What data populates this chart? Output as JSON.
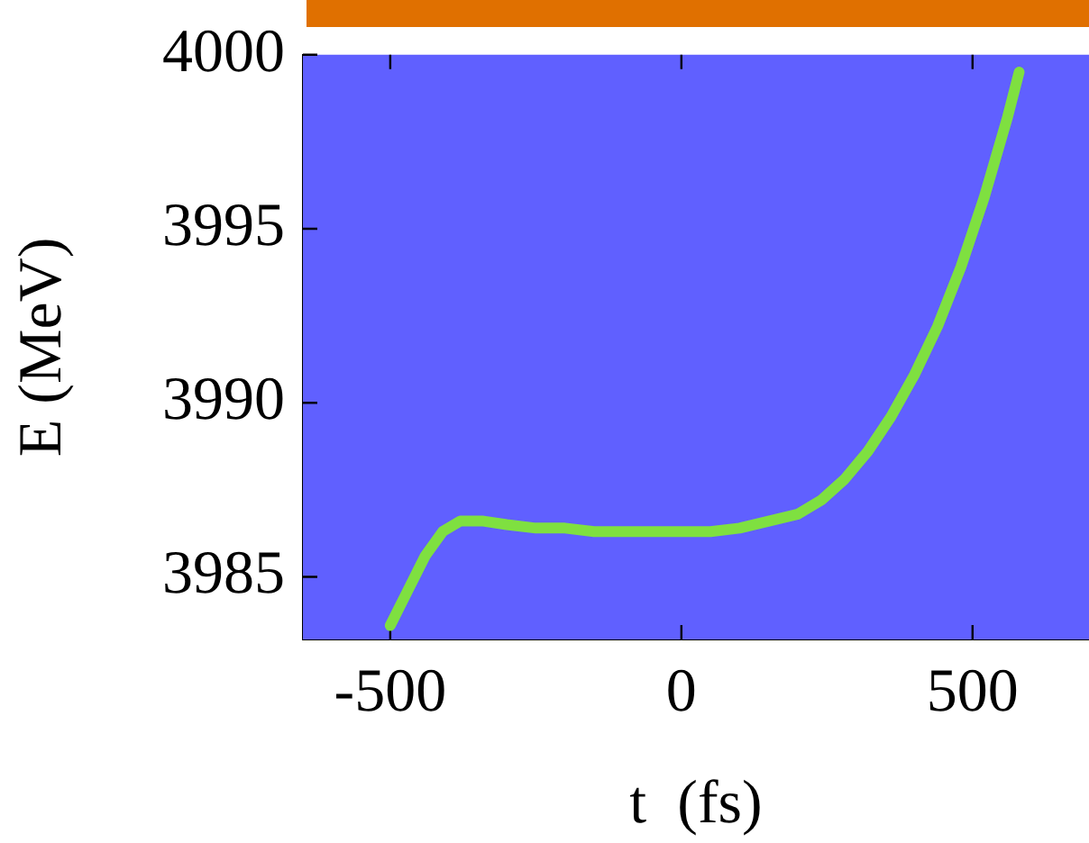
{
  "chart_data": {
    "type": "line",
    "xlabel": "t  (fs)",
    "ylabel": "E (MeV)",
    "x": [
      -500,
      -470,
      -440,
      -410,
      -380,
      -340,
      -300,
      -250,
      -200,
      -150,
      -100,
      -50,
      0,
      50,
      100,
      150,
      200,
      240,
      280,
      320,
      360,
      400,
      440,
      480,
      520,
      560,
      580
    ],
    "series": [
      {
        "color": "#7fe040",
        "values": [
          3983.6,
          3984.6,
          3985.6,
          3986.3,
          3986.6,
          3986.6,
          3986.5,
          3986.4,
          3986.4,
          3986.3,
          3986.3,
          3986.3,
          3986.3,
          3986.3,
          3986.4,
          3986.6,
          3986.8,
          3987.2,
          3987.8,
          3988.6,
          3989.6,
          3990.8,
          3992.2,
          3993.9,
          3995.9,
          3998.2,
          3999.5
        ]
      }
    ],
    "xlim": [
      -650,
      700
    ],
    "ylim": [
      3983.2,
      4000
    ],
    "xticks": [
      -500,
      0,
      500
    ],
    "yticks": [
      3985,
      3990,
      3995,
      4000
    ],
    "grid": false,
    "legend": false,
    "marker": "none",
    "line_style": "solid"
  }
}
